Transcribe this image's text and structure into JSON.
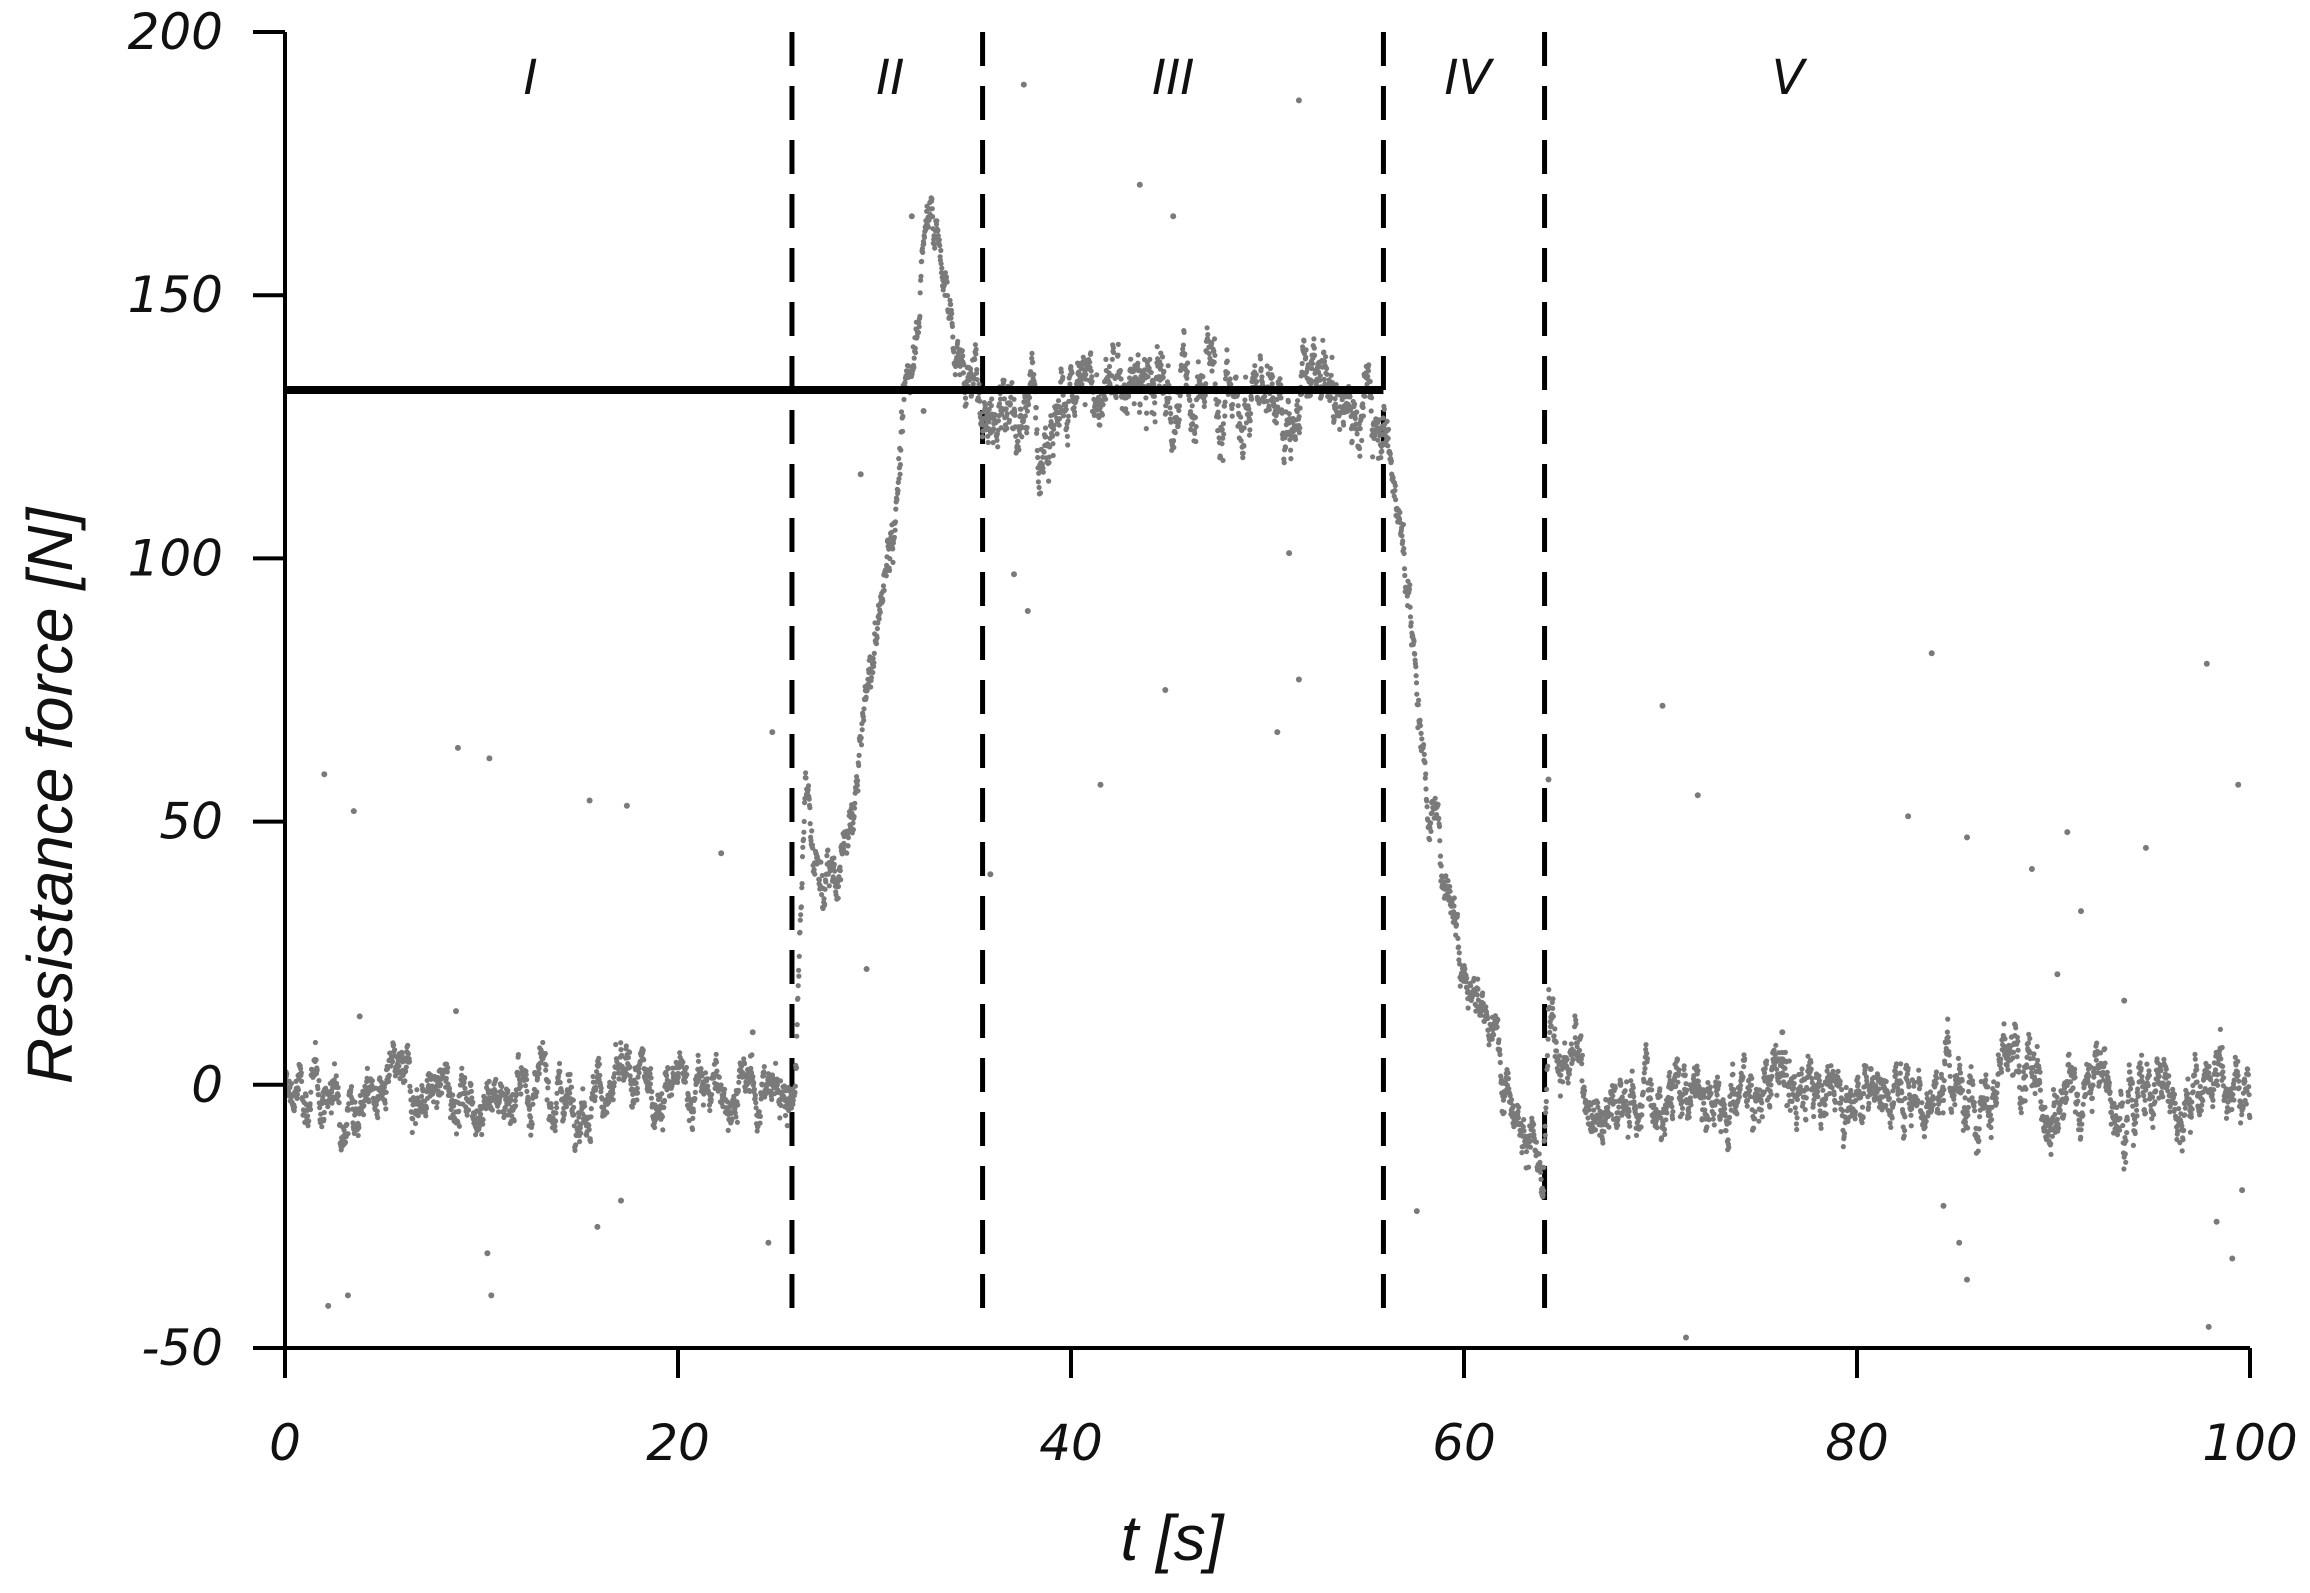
{
  "chart_data": {
    "type": "scatter",
    "title": "",
    "xlabel": "t [s]",
    "ylabel": "Resistance  force [N]",
    "xlim": [
      0,
      100
    ],
    "ylim": [
      -50,
      200
    ],
    "xticks": [
      0,
      20,
      40,
      60,
      80,
      100
    ],
    "yticks": [
      200,
      150,
      100,
      50,
      0,
      -50
    ],
    "xtick_labels": [
      "0",
      "20",
      "40",
      "60",
      "80",
      "100"
    ],
    "ytick_labels": [
      "200",
      "150",
      "100",
      "50",
      "0",
      "-50"
    ],
    "grid": false,
    "legend": "none",
    "phase_boundaries": [
      25.8,
      35.5,
      55.9,
      64.1
    ],
    "phases": [
      {
        "label": "I",
        "x": 12.5
      },
      {
        "label": "II",
        "x": 30.8
      },
      {
        "label": "III",
        "x": 45.2
      },
      {
        "label": "IV",
        "x": 60.2
      },
      {
        "label": "V",
        "x": 76.5
      }
    ],
    "reference_line": {
      "y": 132,
      "x_start": 0,
      "x_end": 55.9
    },
    "series": [
      {
        "point_color": "#7a7a7a",
        "trend": {
          "x": [
            0,
            10,
            25.6,
            26.0,
            26.5,
            27.0,
            28.0,
            28.8,
            29.5,
            30.5,
            31.5,
            32.3,
            32.9,
            33.6,
            34.5,
            35.5,
            45,
            55.9,
            56.5,
            57.2,
            58.2,
            59.5,
            60.5,
            61.5,
            62.5,
            63.5,
            64.0,
            64.3,
            65.5,
            67,
            68.5,
            70,
            80,
            90,
            100
          ],
          "y": [
            -2,
            -1,
            -1,
            2,
            55,
            42,
            37,
            48,
            70,
            95,
            125,
            152,
            170,
            150,
            135,
            130,
            132,
            130,
            115,
            90,
            55,
            35,
            18,
            8,
            0,
            -10,
            -25,
            8,
            5,
            -3,
            -3,
            0,
            0,
            0,
            -1
          ]
        },
        "noise_amplitude_y": 5,
        "outliers": [
          {
            "x": 2.0,
            "y": 59
          },
          {
            "x": 3.5,
            "y": 52
          },
          {
            "x": 8.8,
            "y": 64
          },
          {
            "x": 10.4,
            "y": 62
          },
          {
            "x": 15.5,
            "y": 54
          },
          {
            "x": 17.4,
            "y": 53
          },
          {
            "x": 22.2,
            "y": 44
          },
          {
            "x": 24.8,
            "y": 67
          },
          {
            "x": 2.2,
            "y": -42
          },
          {
            "x": 3.2,
            "y": -40
          },
          {
            "x": 10.3,
            "y": -32
          },
          {
            "x": 10.5,
            "y": -40
          },
          {
            "x": 15.9,
            "y": -27
          },
          {
            "x": 17.1,
            "y": -22
          },
          {
            "x": 24.6,
            "y": -30
          },
          {
            "x": 3.8,
            "y": 13
          },
          {
            "x": 8.7,
            "y": 14
          },
          {
            "x": 23.8,
            "y": 10
          },
          {
            "x": 31.9,
            "y": 165
          },
          {
            "x": 37.6,
            "y": 190
          },
          {
            "x": 43.5,
            "y": 171
          },
          {
            "x": 45.2,
            "y": 165
          },
          {
            "x": 51.6,
            "y": 187
          },
          {
            "x": 37.1,
            "y": 97
          },
          {
            "x": 37.8,
            "y": 90
          },
          {
            "x": 51.1,
            "y": 101
          },
          {
            "x": 35.9,
            "y": 40
          },
          {
            "x": 41.5,
            "y": 57
          },
          {
            "x": 44.8,
            "y": 75
          },
          {
            "x": 50.5,
            "y": 67
          },
          {
            "x": 51.6,
            "y": 77
          },
          {
            "x": 29.6,
            "y": 22
          },
          {
            "x": 29.3,
            "y": 116
          },
          {
            "x": 32.5,
            "y": 128
          },
          {
            "x": 57.6,
            "y": -24
          },
          {
            "x": 64.3,
            "y": 58
          },
          {
            "x": 70.1,
            "y": 72
          },
          {
            "x": 71.9,
            "y": 55
          },
          {
            "x": 76.2,
            "y": 10
          },
          {
            "x": 80.7,
            "y": 3
          },
          {
            "x": 82.6,
            "y": 51
          },
          {
            "x": 83.8,
            "y": 82
          },
          {
            "x": 85.6,
            "y": 47
          },
          {
            "x": 88.9,
            "y": 41
          },
          {
            "x": 90.7,
            "y": 48
          },
          {
            "x": 90.2,
            "y": 21
          },
          {
            "x": 91.4,
            "y": 33
          },
          {
            "x": 94.7,
            "y": 45
          },
          {
            "x": 97.8,
            "y": 80
          },
          {
            "x": 99.4,
            "y": 57
          },
          {
            "x": 84.4,
            "y": -23
          },
          {
            "x": 85.2,
            "y": -30
          },
          {
            "x": 85.6,
            "y": -37
          },
          {
            "x": 71.3,
            "y": -48
          },
          {
            "x": 98.3,
            "y": -26
          },
          {
            "x": 99.1,
            "y": -33
          },
          {
            "x": 97.9,
            "y": -46
          },
          {
            "x": 99.6,
            "y": -20
          },
          {
            "x": 93.6,
            "y": 16
          }
        ]
      }
    ]
  }
}
